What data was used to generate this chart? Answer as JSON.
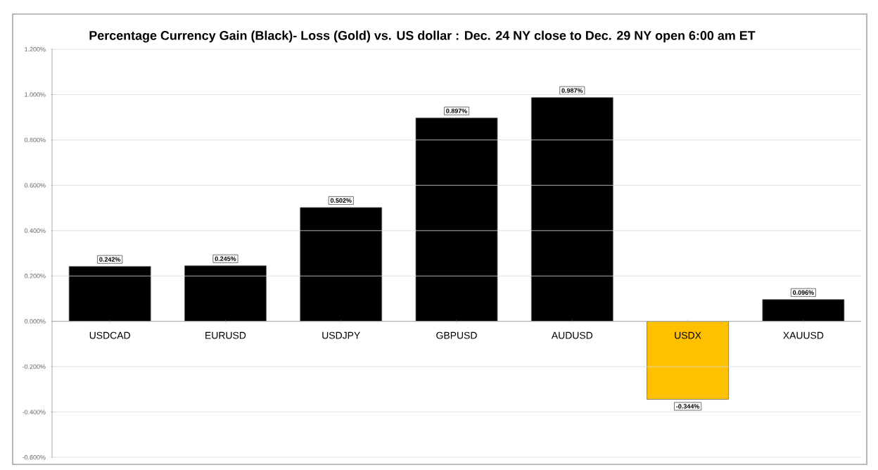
{
  "chart_data": {
    "type": "bar",
    "title": "Percentage Currency  Gain (Black)- Loss (Gold)  vs. US dollar :  Dec. 24 NY close  to  Dec. 29 NY open  6:00 am ET",
    "categories": [
      "USDCAD",
      "EURUSD",
      "USDJPY",
      "GBPUSD",
      "AUDUSD",
      "USDX",
      "XAUUSD"
    ],
    "values": [
      0.242,
      0.245,
      0.502,
      0.897,
      0.987,
      -0.344,
      0.096
    ],
    "colors": [
      "#000000",
      "#000000",
      "#000000",
      "#000000",
      "#000000",
      "#ffc000",
      "#000000"
    ],
    "value_labels": [
      "0.242%",
      "0.245%",
      "0.502%",
      "0.897%",
      "0.987%",
      "-0.344%",
      "0.096%"
    ],
    "ylim": [
      -0.6,
      1.2
    ],
    "yticks": [
      {
        "value": -0.6,
        "label": "-0.600%"
      },
      {
        "value": -0.4,
        "label": "-0.400%"
      },
      {
        "value": -0.2,
        "label": "-0.200%"
      },
      {
        "value": 0,
        "label": "0.000%"
      },
      {
        "value": 0.2,
        "label": "0.200%"
      },
      {
        "value": 0.4,
        "label": "0.400%"
      },
      {
        "value": 0.6,
        "label": "0.600%"
      },
      {
        "value": 0.8,
        "label": "0.800%"
      },
      {
        "value": 1.0,
        "label": "1.000%"
      },
      {
        "value": 1.2,
        "label": "1.200%"
      }
    ],
    "grid": "y"
  }
}
